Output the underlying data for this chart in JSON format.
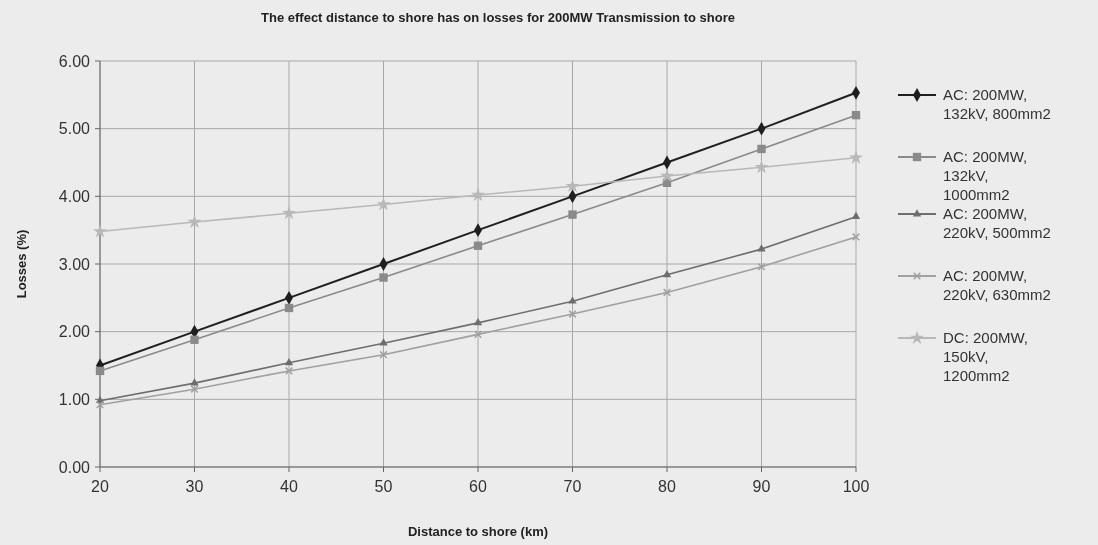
{
  "chart_data": {
    "type": "line",
    "title": "The effect distance to shore has on losses for 200MW Transmission to shore",
    "xlabel": "Distance to shore (km)",
    "ylabel": "Losses (%)",
    "x": [
      20,
      30,
      40,
      50,
      60,
      70,
      80,
      90,
      100
    ],
    "xlim": [
      20,
      100
    ],
    "xticks": [
      20,
      30,
      40,
      50,
      60,
      70,
      80,
      90,
      100
    ],
    "ylim": [
      0,
      6
    ],
    "yticks": [
      {
        "value": 0,
        "label": "0.00"
      },
      {
        "value": 1,
        "label": "1.00"
      },
      {
        "value": 2,
        "label": "2.00"
      },
      {
        "value": 3,
        "label": "3.00"
      },
      {
        "value": 4,
        "label": "4.00"
      },
      {
        "value": 5,
        "label": "5.00"
      },
      {
        "value": 6,
        "label": "6.00"
      }
    ],
    "grid": true,
    "legend": "right",
    "line_style": "solid",
    "series": [
      {
        "name": "AC: 200MW, 132kV, 800mm2",
        "color": "#1f1f1f",
        "marker": "diamond",
        "values": [
          1.5,
          2.0,
          2.5,
          3.0,
          3.5,
          4.0,
          4.5,
          5.0,
          5.53
        ]
      },
      {
        "name": "AC: 200MW, 132kV, 1000mm2",
        "color": "#8a8a8a",
        "marker": "square",
        "values": [
          1.42,
          1.88,
          2.35,
          2.8,
          3.27,
          3.73,
          4.2,
          4.7,
          5.2
        ]
      },
      {
        "name": "AC: 200MW, 220kV, 500mm2",
        "color": "#6e6e6e",
        "marker": "triangle",
        "values": [
          0.98,
          1.24,
          1.54,
          1.83,
          2.13,
          2.45,
          2.84,
          3.22,
          3.7
        ]
      },
      {
        "name": "AC: 200MW, 220kV, 630mm2",
        "color": "#a0a0a0",
        "marker": "cross",
        "values": [
          0.92,
          1.15,
          1.42,
          1.66,
          1.96,
          2.26,
          2.58,
          2.96,
          3.4
        ]
      },
      {
        "name": "DC: 200MW, 150kV, 1200mm2",
        "color": "#b8b8b8",
        "marker": "star",
        "values": [
          3.48,
          3.62,
          3.75,
          3.88,
          4.02,
          4.15,
          4.3,
          4.43,
          4.57
        ]
      }
    ]
  }
}
